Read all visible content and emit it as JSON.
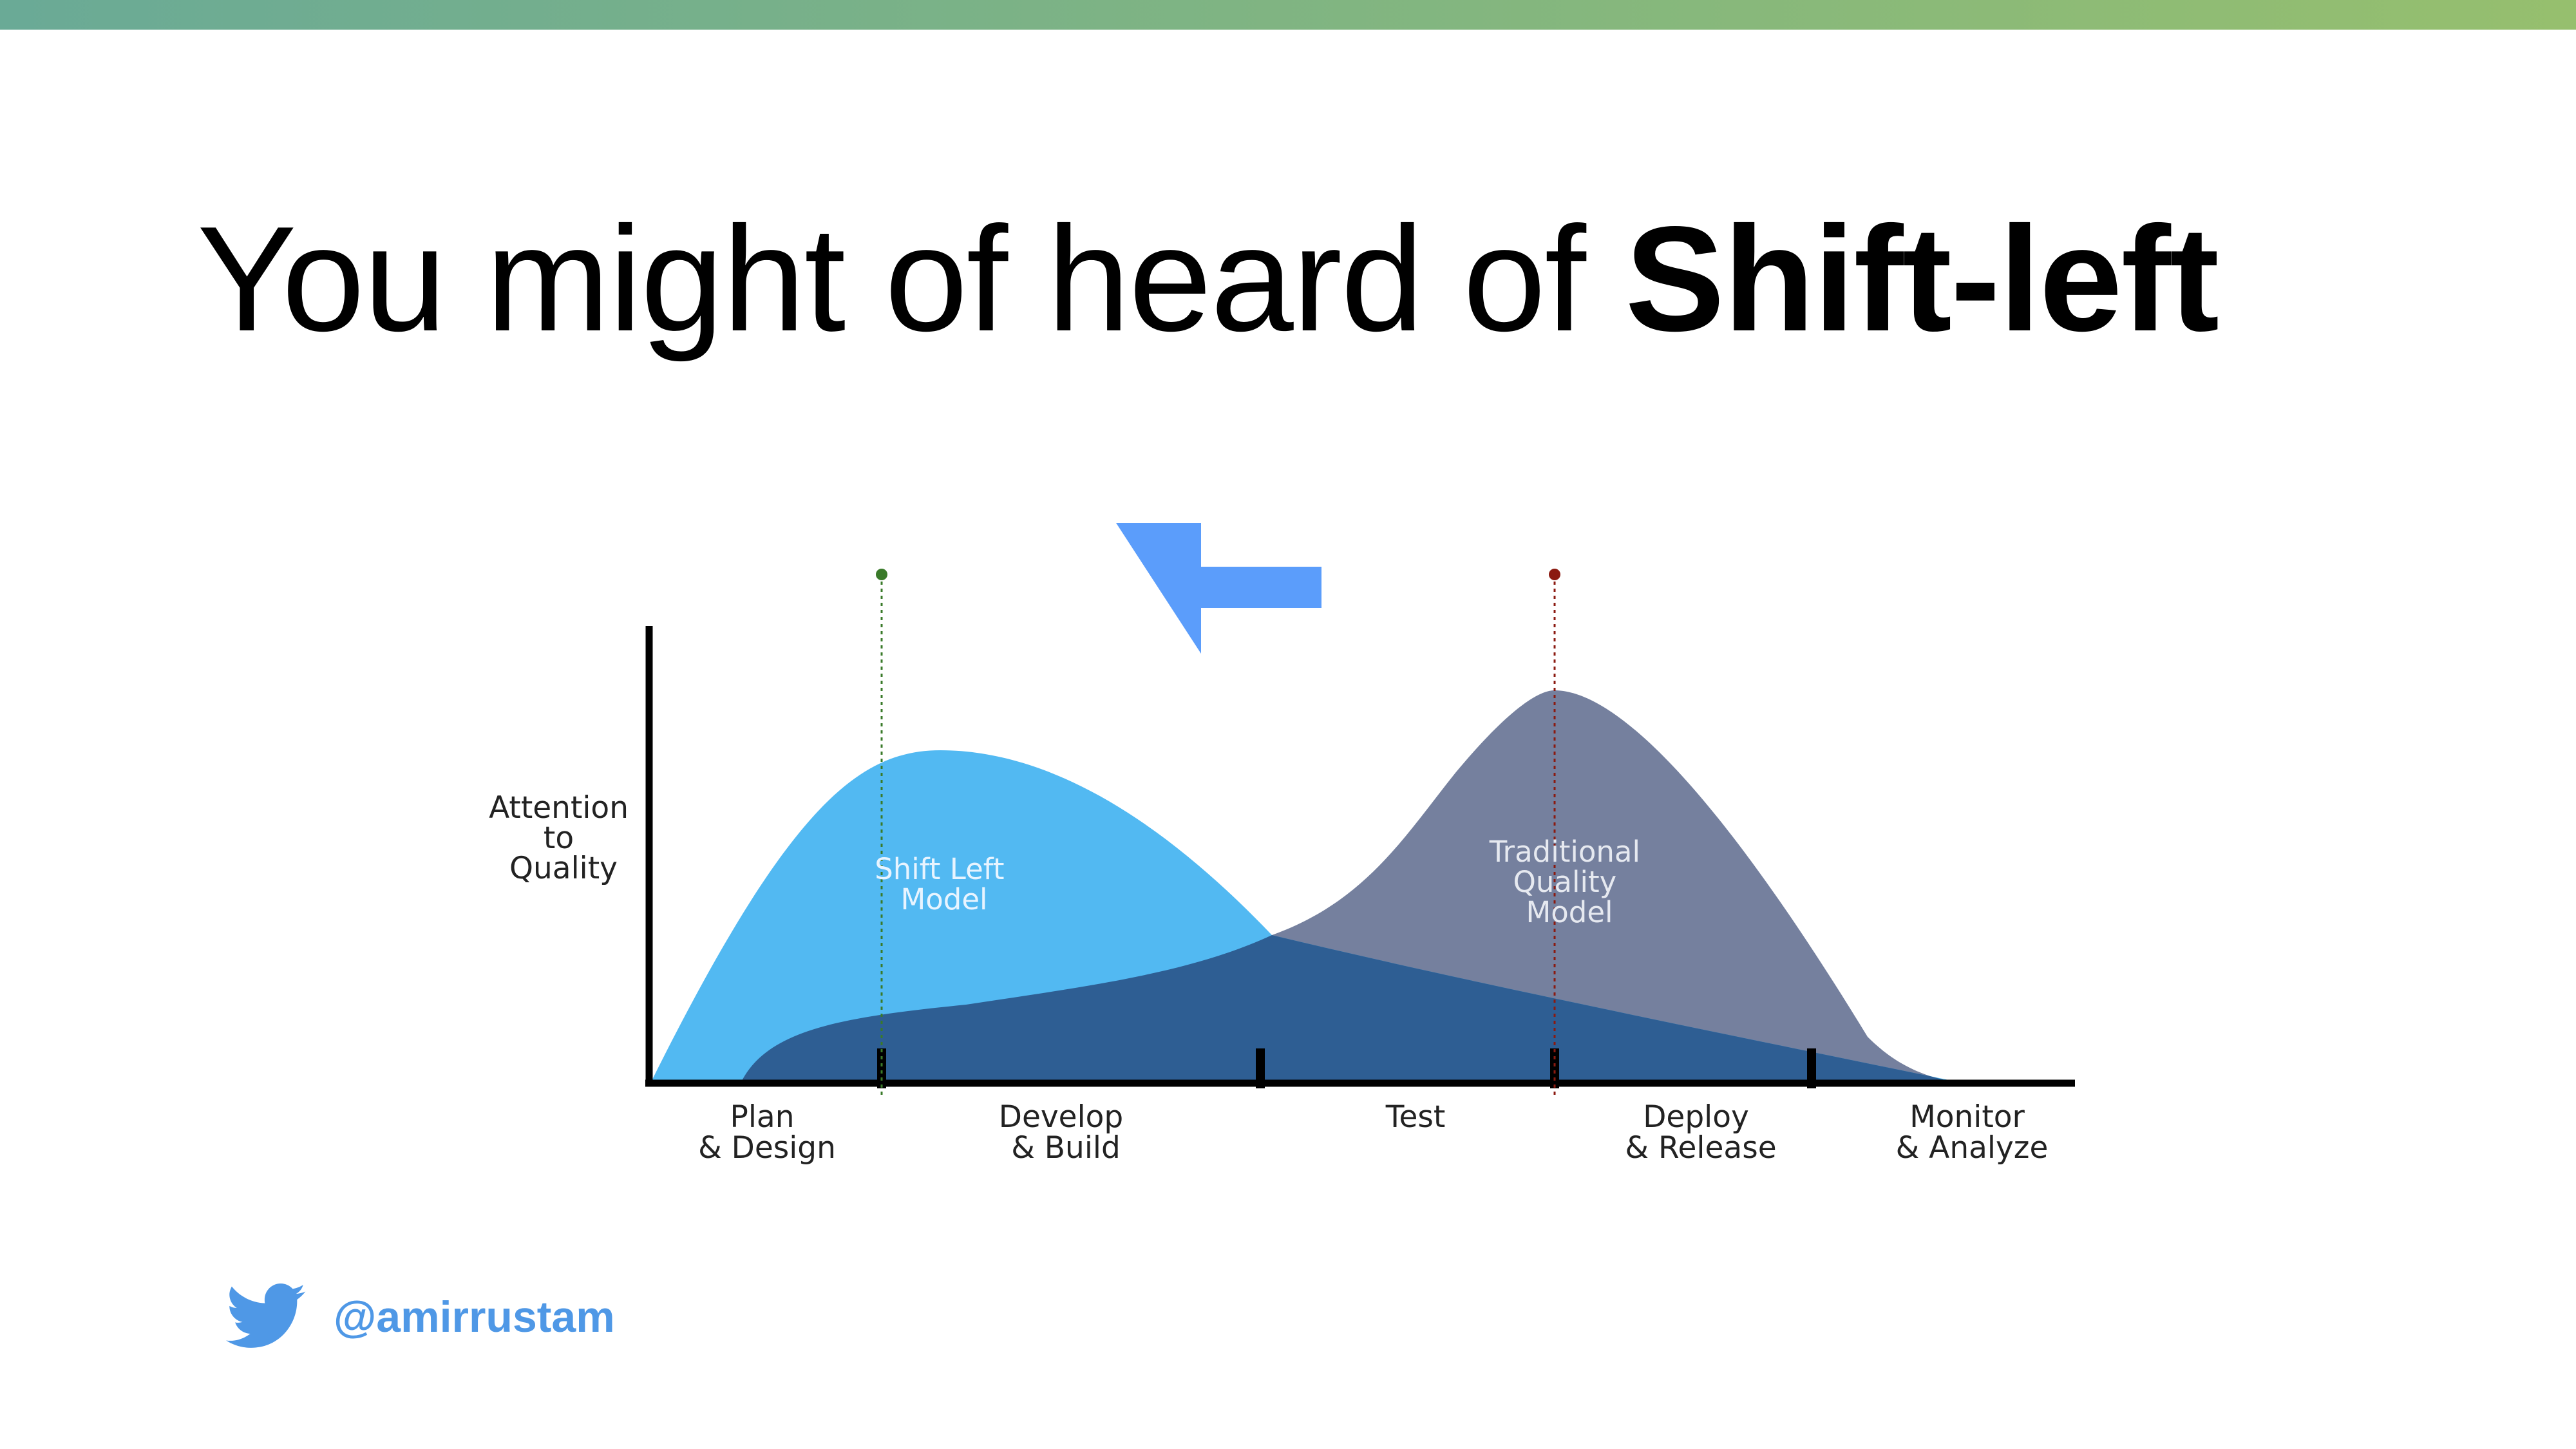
{
  "title": {
    "regular": "You might of heard of ",
    "bold": "Shift-left"
  },
  "colors": {
    "top_bar_start": "#6aaa96",
    "top_bar_end": "#96bf6e",
    "shift_left_curve": "#52b9f2",
    "traditional_curve": "#75809e",
    "overlap": "#2e5e93",
    "arrow": "#5b9dfb",
    "green_marker": "#3a7a2a",
    "red_marker": "#8b1a10",
    "twitter": "#4f98e6"
  },
  "diagram": {
    "y_axis_label": [
      "Attention",
      "to",
      "Quality"
    ],
    "shift_left_label": [
      "Shift Left",
      "Model"
    ],
    "traditional_label": [
      "Traditional",
      "Quality",
      "Model"
    ],
    "phases": [
      {
        "line1": "Plan",
        "line2": "& Design"
      },
      {
        "line1": "Develop",
        "line2": "& Build"
      },
      {
        "line1": "Test",
        "line2": ""
      },
      {
        "line1": "Deploy",
        "line2": "& Release"
      },
      {
        "line1": "Monitor",
        "line2": "& Analyze"
      }
    ],
    "arrow": "arrow-left-icon"
  },
  "footer": {
    "icon": "twitter-bird-icon",
    "handle": "@amirrustam"
  }
}
